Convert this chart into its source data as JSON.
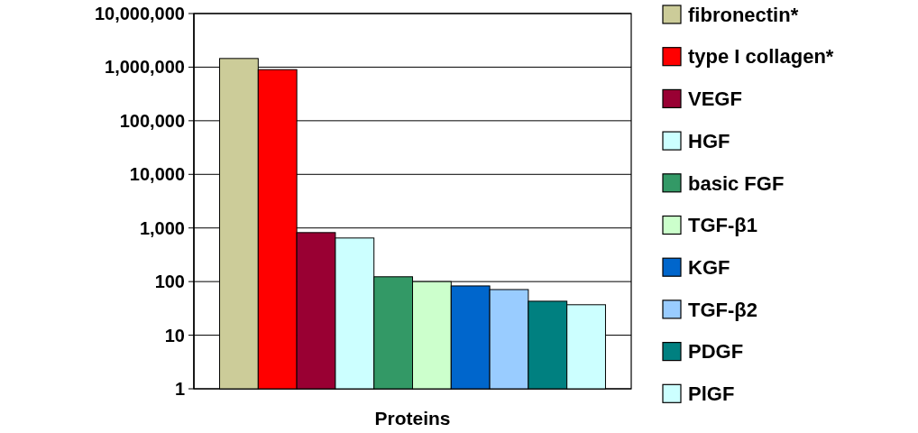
{
  "chart_data": {
    "type": "bar",
    "xlabel": "Proteins",
    "categories": [
      null
    ],
    "log": true,
    "grid": "y",
    "legend": "right",
    "ylim": [
      1,
      10000000
    ],
    "yticks": [
      1,
      10,
      100,
      {
        "value": 1000,
        "label": "1,000"
      },
      {
        "value": 10000,
        "label": "10,000"
      },
      {
        "value": 100000,
        "label": "100,000"
      },
      {
        "value": 1000000,
        "label": "1,000,000"
      },
      {
        "value": 10000000,
        "label": "10,000,000"
      }
    ],
    "series": [
      {
        "name": "fibronectin*",
        "color": "#cccc99",
        "values": [
          1450000
        ]
      },
      {
        "name": "type I collagen*",
        "color": "#ff0000",
        "values": [
          900000
        ]
      },
      {
        "name": "VEGF",
        "color": "#990033",
        "values": [
          820
        ]
      },
      {
        "name": "HGF",
        "color": "#ccffff",
        "values": [
          650
        ]
      },
      {
        "name": "basic FGF",
        "color": "#339966",
        "values": [
          123
        ]
      },
      {
        "name": "TGF-β1",
        "color": "#ccffcc",
        "values": [
          100
        ]
      },
      {
        "name": "KGF",
        "color": "#0066cc",
        "values": [
          83
        ]
      },
      {
        "name": "TGF-β2",
        "color": "#99ccff",
        "values": [
          71
        ]
      },
      {
        "name": "PDGF",
        "color": "#008080",
        "values": [
          43
        ]
      },
      {
        "name": "PlGF",
        "color": "#ccffff",
        "values": [
          37
        ]
      }
    ]
  }
}
